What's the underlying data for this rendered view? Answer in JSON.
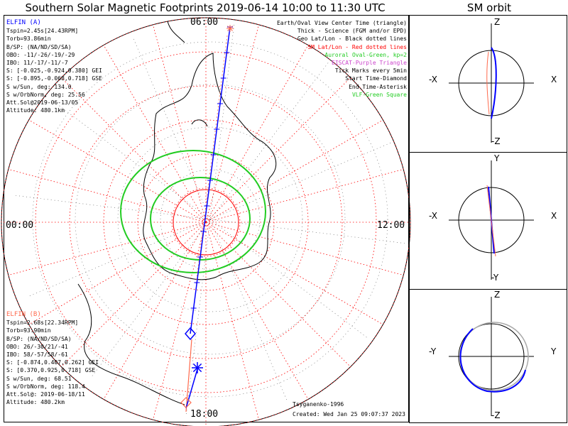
{
  "title": "Southern Solar Magnetic Footprints 2019-06-14 10:00 to 11:30 UTC",
  "orbit_title": "SM orbit",
  "map": {
    "time_top": "06:00",
    "time_left": "00:00",
    "time_right": "12:00",
    "time_bottom": "18:00"
  },
  "elfin_a": {
    "name": "ELFIN (A)",
    "color": "#0000ff",
    "lines": [
      "Tspin=2.45s[24.43RPM]",
      "Torb=93.86min",
      "B/SP: (NA/ND/SD/SA)",
      "OBO: -11/-26/-19/-29",
      "IBO: 11/-17/-11/-7",
      "S: [-0.025,-0.924,0.380] GEI",
      "S: [-0.895,-0.068,0.718] GSE",
      "S w/Sun, deg: 134.0",
      "S w/OrbNorm, deg: 25.56",
      "Att.Sol@2019-06-13/05",
      "Altitude: 480.1km"
    ]
  },
  "elfin_b": {
    "name": "ELFIN (B)",
    "color": "#ff6a4d",
    "lines": [
      "Tspin=2.68s[22.34RPM]",
      "Torb=93.90min",
      "B/SP: (NA/ND/SD/SA)",
      "OBO: 26/-30/21/-41",
      "IBO: 58/-57/58/-61",
      "S: [-0.874,0.407,0.262] GEI",
      "S: [0.370,0.925,0.718] GSE",
      "S w/Sun, deg: 68.51",
      "S w/OrbNorm, deg: 118.4",
      "Att.Sol@: 2019-06-18/11",
      "Altitude: 480.2km"
    ]
  },
  "legend": [
    {
      "text": "Earth/Oval View Center Time (triangle)",
      "color": "#000000"
    },
    {
      "text": "Thick - Science (FGM and/or EPD)",
      "color": "#000000"
    },
    {
      "text": "Geo Lat/Lon - Black dotted lines",
      "color": "#000000"
    },
    {
      "text": "SM Lat/Lon - Red dotted lines",
      "color": "#ff0000"
    },
    {
      "text": "Auroral Oval-Green, kp=2",
      "color": "#22cc22"
    },
    {
      "text": "EISCAT-Purple Triangle",
      "color": "#cc44cc"
    },
    {
      "text": "Tick Marks every 5min",
      "color": "#000000"
    },
    {
      "text": "Start Time-Diamond",
      "color": "#000000"
    },
    {
      "text": "End Time-Asterisk",
      "color": "#000000"
    },
    {
      "text": "VLF-Green Square",
      "color": "#22cc22"
    }
  ],
  "credits": {
    "author": "Tsyganenko-1996",
    "created": "Created: Wed Jan 25 09:07:37 2023"
  },
  "panels": [
    {
      "top": "Z",
      "bottom": "-Z",
      "left": "-X",
      "right": "X"
    },
    {
      "top": "Y",
      "bottom": "-Y",
      "left": "-X",
      "right": "X"
    },
    {
      "top": "Z",
      "bottom": "-Z",
      "left": "-Y",
      "right": "Y"
    }
  ],
  "colors": {
    "ellipse_oval": "#22cc22",
    "sm_grid": "#ff0000",
    "track_a": "#0000ff",
    "track_b": "#ff6a4d"
  }
}
